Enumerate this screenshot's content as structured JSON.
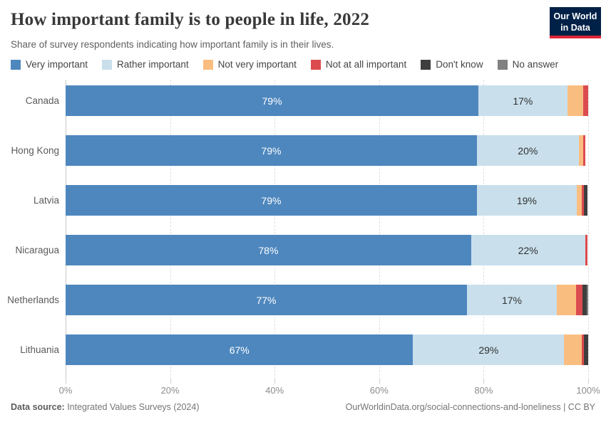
{
  "header": {
    "title": "How important family is to people in life, 2022",
    "subtitle": "Share of survey respondents indicating how important family is in their lives."
  },
  "logo": {
    "line1": "Our World",
    "line2": "in Data",
    "bg_color": "#002147",
    "accent_color": "#dc2636"
  },
  "legend": [
    {
      "label": "Very important",
      "color": "#4e87be"
    },
    {
      "label": "Rather important",
      "color": "#c9e0ec"
    },
    {
      "label": "Not very important",
      "color": "#fabd80"
    },
    {
      "label": "Not at all important",
      "color": "#dc4b4e"
    },
    {
      "label": "Don't know",
      "color": "#3e3e3e"
    },
    {
      "label": "No answer",
      "color": "#818181"
    }
  ],
  "chart_data": {
    "type": "bar",
    "variant": "horizontal-stacked",
    "title": "How important family is to people in life, 2022",
    "xlabel": "",
    "ylabel": "",
    "xlim": [
      0,
      100
    ],
    "unit": "%",
    "grid": "vertical-dashed",
    "legend_position": "top",
    "categories": [
      "Canada",
      "Hong Kong",
      "Latvia",
      "Nicaragua",
      "Netherlands",
      "Lithuania"
    ],
    "x_ticks": [
      {
        "label": "0%",
        "pct": 0
      },
      {
        "label": "20%",
        "pct": 20
      },
      {
        "label": "40%",
        "pct": 40
      },
      {
        "label": "60%",
        "pct": 60
      },
      {
        "label": "80%",
        "pct": 80
      },
      {
        "label": "100%",
        "pct": 100
      }
    ],
    "rows": [
      {
        "country": "Canada",
        "segments": [
          {
            "name": "Very important",
            "value": 79.0,
            "label": "79%"
          },
          {
            "name": "Rather important",
            "value": 17.0,
            "label": "17%"
          },
          {
            "name": "Not very important",
            "value": 3.0,
            "label": ""
          },
          {
            "name": "Not at all important",
            "value": 1.0,
            "label": ""
          },
          {
            "name": "Don't know",
            "value": 0,
            "label": ""
          },
          {
            "name": "No answer",
            "value": 0,
            "label": ""
          }
        ]
      },
      {
        "country": "Hong Kong",
        "segments": [
          {
            "name": "Very important",
            "value": 78.7,
            "label": "79%"
          },
          {
            "name": "Rather important",
            "value": 19.5,
            "label": "20%"
          },
          {
            "name": "Not very important",
            "value": 0.8,
            "label": ""
          },
          {
            "name": "Not at all important",
            "value": 0.4,
            "label": ""
          },
          {
            "name": "Don't know",
            "value": 0,
            "label": ""
          },
          {
            "name": "No answer",
            "value": 0,
            "label": ""
          }
        ]
      },
      {
        "country": "Latvia",
        "segments": [
          {
            "name": "Very important",
            "value": 78.7,
            "label": "79%"
          },
          {
            "name": "Rather important",
            "value": 19.1,
            "label": "19%"
          },
          {
            "name": "Not very important",
            "value": 1.0,
            "label": ""
          },
          {
            "name": "Not at all important",
            "value": 0.4,
            "label": ""
          },
          {
            "name": "Don't know",
            "value": 0.7,
            "label": ""
          },
          {
            "name": "No answer",
            "value": 0,
            "label": ""
          }
        ]
      },
      {
        "country": "Nicaragua",
        "segments": [
          {
            "name": "Very important",
            "value": 77.6,
            "label": "78%"
          },
          {
            "name": "Rather important",
            "value": 21.8,
            "label": "22%"
          },
          {
            "name": "Not very important",
            "value": 0,
            "label": ""
          },
          {
            "name": "Not at all important",
            "value": 0.4,
            "label": ""
          },
          {
            "name": "Don't know",
            "value": 0,
            "label": ""
          },
          {
            "name": "No answer",
            "value": 0,
            "label": ""
          }
        ]
      },
      {
        "country": "Netherlands",
        "segments": [
          {
            "name": "Very important",
            "value": 76.8,
            "label": "77%"
          },
          {
            "name": "Rather important",
            "value": 17.2,
            "label": "17%"
          },
          {
            "name": "Not very important",
            "value": 3.7,
            "label": ""
          },
          {
            "name": "Not at all important",
            "value": 1.2,
            "label": ""
          },
          {
            "name": "Don't know",
            "value": 0.8,
            "label": ""
          },
          {
            "name": "No answer",
            "value": 0.3,
            "label": ""
          }
        ]
      },
      {
        "country": "Lithuania",
        "segments": [
          {
            "name": "Very important",
            "value": 66.5,
            "label": "67%"
          },
          {
            "name": "Rather important",
            "value": 28.9,
            "label": "29%"
          },
          {
            "name": "Not very important",
            "value": 3.4,
            "label": ""
          },
          {
            "name": "Not at all important",
            "value": 0.4,
            "label": ""
          },
          {
            "name": "Don't know",
            "value": 0.8,
            "label": ""
          },
          {
            "name": "No answer",
            "value": 0,
            "label": ""
          }
        ]
      }
    ]
  },
  "footer": {
    "source_label": "Data source:",
    "source_value": " Integrated Values Surveys (2024)",
    "rights": "OurWorldinData.org/social-connections-and-loneliness | CC BY"
  }
}
